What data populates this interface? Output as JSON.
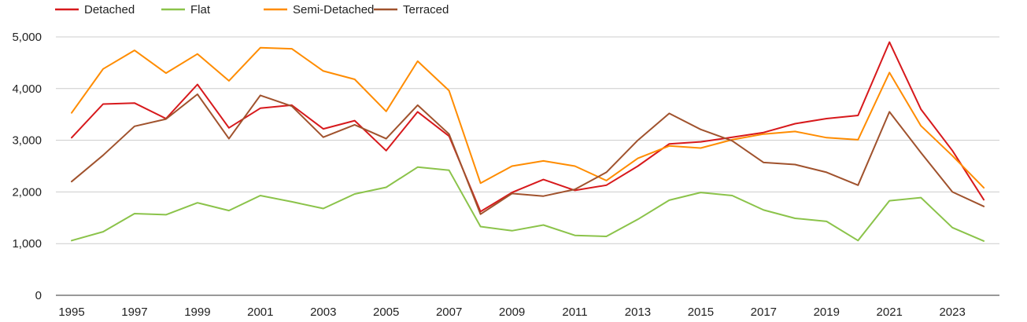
{
  "chart_data": {
    "type": "line",
    "title": "",
    "xlabel": "",
    "ylabel": "",
    "x": [
      1995,
      1996,
      1997,
      1998,
      1999,
      2000,
      2001,
      2002,
      2003,
      2004,
      2005,
      2006,
      2007,
      2008,
      2009,
      2010,
      2011,
      2012,
      2013,
      2014,
      2015,
      2016,
      2017,
      2018,
      2019,
      2020,
      2021,
      2022,
      2023,
      2024
    ],
    "x_tick_labels": [
      "1995",
      "1997",
      "1999",
      "2001",
      "2003",
      "2005",
      "2007",
      "2009",
      "2011",
      "2013",
      "2015",
      "2017",
      "2019",
      "2021",
      "2023"
    ],
    "y_tick_values": [
      0,
      1000,
      2000,
      3000,
      4000,
      5000
    ],
    "y_tick_labels": [
      "0",
      "1,000",
      "2,000",
      "3,000",
      "4,000",
      "5,000"
    ],
    "ylim": [
      0,
      5000
    ],
    "grid": "horizontal",
    "legend_position": "top-left",
    "series": [
      {
        "name": "Detached",
        "color": "#d7191c",
        "values": [
          3050,
          3700,
          3720,
          3420,
          4080,
          3240,
          3620,
          3680,
          3220,
          3380,
          2800,
          3550,
          3080,
          1620,
          1990,
          2240,
          2030,
          2130,
          2500,
          2930,
          2970,
          3060,
          3150,
          3320,
          3420,
          3480,
          4900,
          3600,
          2800,
          1850
        ]
      },
      {
        "name": "Flat",
        "color": "#8bc34a",
        "values": [
          1060,
          1230,
          1580,
          1560,
          1790,
          1640,
          1930,
          1810,
          1680,
          1960,
          2090,
          2480,
          2420,
          1330,
          1250,
          1360,
          1160,
          1140,
          1470,
          1840,
          1990,
          1930,
          1650,
          1490,
          1430,
          1060,
          1830,
          1890,
          1310,
          1050
        ]
      },
      {
        "name": "Semi-Detached",
        "color": "#ff8c00",
        "values": [
          3530,
          4380,
          4740,
          4300,
          4670,
          4150,
          4790,
          4770,
          4340,
          4180,
          3560,
          4530,
          3960,
          2170,
          2500,
          2600,
          2500,
          2220,
          2650,
          2890,
          2850,
          3010,
          3120,
          3170,
          3050,
          3010,
          4310,
          3280,
          2700,
          2080
        ]
      },
      {
        "name": "Terraced",
        "color": "#a0522d",
        "values": [
          2200,
          2710,
          3270,
          3410,
          3890,
          3030,
          3870,
          3660,
          3060,
          3300,
          3030,
          3680,
          3120,
          1570,
          1970,
          1920,
          2050,
          2380,
          3000,
          3520,
          3210,
          2990,
          2570,
          2530,
          2380,
          2130,
          3550,
          2760,
          2000,
          1720
        ]
      }
    ]
  }
}
